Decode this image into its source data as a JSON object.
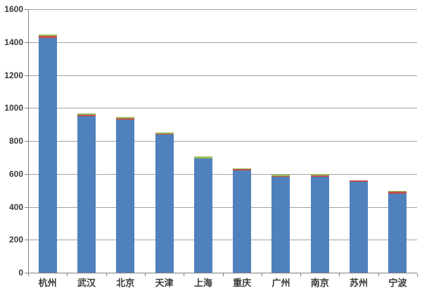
{
  "chart_data": {
    "type": "bar",
    "stacked": true,
    "title": "",
    "xlabel": "",
    "ylabel": "",
    "legend": "none",
    "grid": true,
    "ylim": [
      0,
      1600
    ],
    "y_ticks": [
      0,
      200,
      400,
      600,
      800,
      1000,
      1200,
      1400,
      1600
    ],
    "categories": [
      "杭州",
      "武汉",
      "北京",
      "天津",
      "上海",
      "重庆",
      "广州",
      "南京",
      "苏州",
      "宁波"
    ],
    "series": [
      {
        "color": "#4F81BD",
        "values": [
          1425,
          950,
          928,
          838,
          692,
          622,
          584,
          581,
          551,
          481
        ]
      },
      {
        "color": "#C0504D",
        "values": [
          11,
          10,
          11,
          3,
          3,
          9,
          2,
          9,
          8,
          9
        ]
      },
      {
        "color": "#9BBB59",
        "values": [
          10,
          5,
          7,
          9,
          10,
          2,
          9,
          8,
          2,
          8
        ]
      }
    ],
    "totals": [
      1446,
      965,
      946,
      850,
      705,
      633,
      595,
      598,
      561,
      498
    ],
    "colors": {
      "background": "#ffffff",
      "gridline": "#a3a3a3",
      "axis": "#808080",
      "tick_text": "#3a3a3a"
    }
  }
}
